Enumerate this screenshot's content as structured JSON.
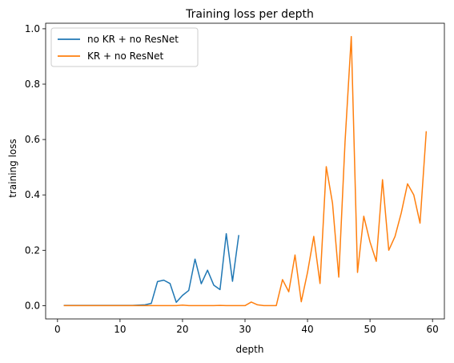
{
  "chart_data": {
    "type": "line",
    "title": "Training loss per depth",
    "xlabel": "depth",
    "ylabel": "training loss",
    "xlim": [
      -1.9,
      61.9
    ],
    "ylim": [
      -0.048,
      1.02
    ],
    "xticks": [
      0,
      10,
      20,
      30,
      40,
      50,
      60
    ],
    "yticks": [
      0.0,
      0.2,
      0.4,
      0.6,
      0.8,
      1.0
    ],
    "grid": false,
    "legend_position": "top-left",
    "series": [
      {
        "name": "no KR + no ResNet",
        "color": "#1f77b4",
        "x": [
          1,
          2,
          3,
          4,
          5,
          6,
          7,
          8,
          9,
          10,
          11,
          12,
          13,
          14,
          15,
          16,
          17,
          18,
          19,
          20,
          21,
          22,
          23,
          24,
          25,
          26,
          27,
          28,
          29
        ],
        "y": [
          0.001,
          0.001,
          0.001,
          0.001,
          0.001,
          0.001,
          0.001,
          0.001,
          0.001,
          0.001,
          0.001,
          0.001,
          0.002,
          0.003,
          0.008,
          0.087,
          0.092,
          0.08,
          0.012,
          0.037,
          0.055,
          0.168,
          0.079,
          0.128,
          0.074,
          0.058,
          0.26,
          0.088,
          0.255
        ]
      },
      {
        "name": "KR + no ResNet",
        "color": "#ff7f0e",
        "x": [
          1,
          2,
          3,
          4,
          5,
          6,
          7,
          8,
          9,
          10,
          11,
          12,
          13,
          14,
          15,
          16,
          17,
          18,
          19,
          20,
          21,
          22,
          23,
          24,
          25,
          26,
          27,
          28,
          29,
          30,
          31,
          32,
          33,
          34,
          35,
          36,
          37,
          38,
          39,
          40,
          41,
          42,
          43,
          44,
          45,
          46,
          47,
          48,
          49,
          50,
          51,
          52,
          53,
          54,
          55,
          56,
          57,
          58,
          59
        ],
        "y": [
          0.0,
          0.0,
          0.0,
          0.0,
          0.0,
          0.0,
          0.0,
          0.0,
          0.0,
          0.0,
          0.0,
          0.0,
          0.0,
          0.0,
          0.0,
          0.0,
          0.0,
          0.0,
          0.0,
          0.002,
          0.0,
          0.0,
          0.0,
          0.0,
          0.0,
          0.001,
          0.0,
          0.0,
          0.0,
          0.0,
          0.013,
          0.003,
          0.0,
          0.0,
          0.0,
          0.094,
          0.05,
          0.183,
          0.014,
          0.12,
          0.25,
          0.08,
          0.502,
          0.37,
          0.103,
          0.59,
          0.972,
          0.12,
          0.323,
          0.23,
          0.16,
          0.455,
          0.2,
          0.25,
          0.335,
          0.44,
          0.4,
          0.298,
          0.63
        ]
      }
    ]
  }
}
